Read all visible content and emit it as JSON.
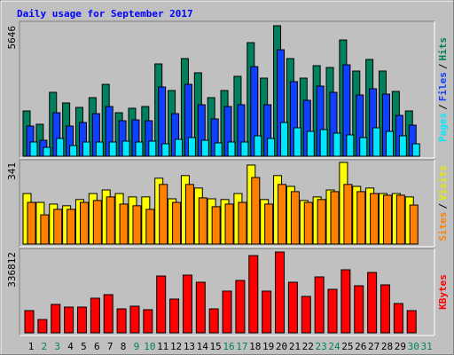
{
  "title": "Daily usage for September 2017",
  "categories": [
    "1",
    "2",
    "3",
    "4",
    "5",
    "6",
    "7",
    "8",
    "9",
    "10",
    "11",
    "12",
    "13",
    "14",
    "15",
    "16",
    "17",
    "18",
    "19",
    "20",
    "21",
    "22",
    "23",
    "24",
    "25",
    "26",
    "27",
    "28",
    "29",
    "30",
    "31"
  ],
  "weekend_categories": [
    "2",
    "3",
    "9",
    "10",
    "16",
    "17",
    "23",
    "24",
    "30",
    "31"
  ],
  "weekend_color": "#00805c",
  "separator": "/",
  "chart_data": [
    {
      "type": "bar",
      "ylim": [
        0,
        5646
      ],
      "yticks": [
        5646
      ],
      "series": [
        {
          "name": "Hits",
          "color": "#00805c",
          "values": [
            1958,
            1382,
            2765,
            2304,
            2112,
            2534,
            3110,
            1882,
            2074,
            2150,
            3994,
            2842,
            4224,
            3610,
            2534,
            2842,
            3456,
            4915,
            3379,
            5646,
            4224,
            3379,
            3917,
            3840,
            5030,
            3686,
            4186,
            3686,
            2803,
            1958,
            null
          ]
        },
        {
          "name": "Files",
          "color": "#1040ff",
          "values": [
            1306,
            691,
            1882,
            1306,
            1459,
            1843,
            2150,
            1536,
            1574,
            1536,
            2995,
            1843,
            3110,
            2227,
            1613,
            2150,
            2227,
            3878,
            2227,
            4608,
            3226,
            2419,
            3034,
            2765,
            3955,
            2650,
            2918,
            2688,
            1766,
            1344,
            null
          ]
        },
        {
          "name": "Pages",
          "color": "#00e8ff",
          "values": [
            614,
            384,
            768,
            461,
            614,
            614,
            614,
            653,
            614,
            653,
            538,
            730,
            806,
            691,
            576,
            614,
            614,
            883,
            768,
            1459,
            1229,
            1075,
            1152,
            998,
            922,
            806,
            1229,
            1075,
            883,
            538,
            null
          ]
        }
      ]
    },
    {
      "type": "bar",
      "ylim": [
        0,
        341
      ],
      "yticks": [
        341
      ],
      "series": [
        {
          "name": "Visits",
          "color": "#ffff00",
          "values": [
            211,
            174,
            167,
            160,
            186,
            211,
            226,
            211,
            197,
            197,
            275,
            189,
            286,
            234,
            189,
            186,
            211,
            330,
            186,
            286,
            241,
            182,
            197,
            226,
            341,
            241,
            234,
            211,
            211,
            197,
            null
          ]
        },
        {
          "name": "Sites",
          "color": "#ff8000",
          "values": [
            174,
            122,
            145,
            145,
            174,
            182,
            197,
            167,
            160,
            145,
            249,
            174,
            249,
            193,
            156,
            167,
            174,
            278,
            167,
            249,
            219,
            174,
            186,
            219,
            249,
            219,
            211,
            204,
            204,
            163,
            null
          ]
        }
      ]
    },
    {
      "type": "bar",
      "ylim": [
        0,
        336812
      ],
      "yticks": [
        336812
      ],
      "series": [
        {
          "name": "KBytes",
          "color": "#ff0000",
          "values": [
            92525,
            55515,
            118432,
            107329,
            107329,
            144339,
            159143,
            99927,
            111030,
            96226,
            236864,
            140638,
            240565,
            210957,
            99927,
            173947,
            218359,
            321987,
            173947,
            336812,
            210957,
            151741,
            233163,
            181349,
            262771,
            196153,
            251668,
            199854,
            122133,
            92525,
            null
          ]
        }
      ]
    }
  ]
}
